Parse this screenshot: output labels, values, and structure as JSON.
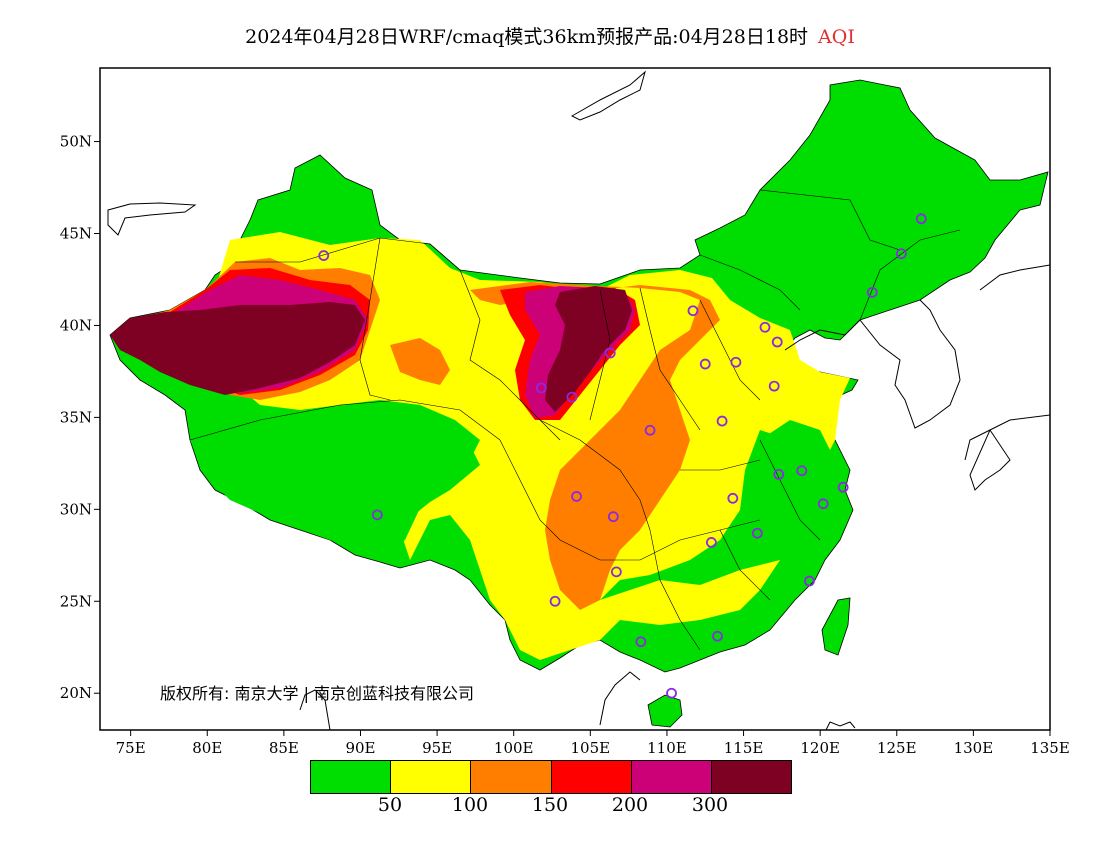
{
  "header": {
    "title": "2024年04月28日WRF/cmaq模式36km预报产品:04月28日18时",
    "variable": "AQI"
  },
  "map": {
    "lat_ticks": [
      "50N",
      "45N",
      "40N",
      "35N",
      "30N",
      "25N",
      "20N"
    ],
    "lon_ticks": [
      "75E",
      "80E",
      "85E",
      "90E",
      "95E",
      "100E",
      "105E",
      "110E",
      "115E",
      "120E",
      "125E",
      "130E",
      "135E"
    ],
    "lat_range": [
      18,
      54
    ],
    "lon_range": [
      73,
      135
    ],
    "copyright": "版权所有: 南京大学 | 南京创蓝科技有限公司",
    "station_marker_color": "#8a2be2",
    "stations": [
      {
        "lon": 87.6,
        "lat": 43.8
      },
      {
        "lon": 91.1,
        "lat": 29.7
      },
      {
        "lon": 101.8,
        "lat": 36.6
      },
      {
        "lon": 103.8,
        "lat": 36.1
      },
      {
        "lon": 106.3,
        "lat": 38.5
      },
      {
        "lon": 111.7,
        "lat": 40.8
      },
      {
        "lon": 112.5,
        "lat": 37.9
      },
      {
        "lon": 114.5,
        "lat": 38.0
      },
      {
        "lon": 116.4,
        "lat": 39.9
      },
      {
        "lon": 117.2,
        "lat": 39.1
      },
      {
        "lon": 117.0,
        "lat": 36.7
      },
      {
        "lon": 113.6,
        "lat": 34.8
      },
      {
        "lon": 108.9,
        "lat": 34.3
      },
      {
        "lon": 104.1,
        "lat": 30.7
      },
      {
        "lon": 106.5,
        "lat": 29.6
      },
      {
        "lon": 106.7,
        "lat": 26.6
      },
      {
        "lon": 102.7,
        "lat": 25.0
      },
      {
        "lon": 108.3,
        "lat": 22.8
      },
      {
        "lon": 113.3,
        "lat": 23.1
      },
      {
        "lon": 110.3,
        "lat": 20.0
      },
      {
        "lon": 119.3,
        "lat": 26.1
      },
      {
        "lon": 120.2,
        "lat": 30.3
      },
      {
        "lon": 121.5,
        "lat": 31.2
      },
      {
        "lon": 118.8,
        "lat": 32.1
      },
      {
        "lon": 117.3,
        "lat": 31.9
      },
      {
        "lon": 115.9,
        "lat": 28.7
      },
      {
        "lon": 112.9,
        "lat": 28.2
      },
      {
        "lon": 114.3,
        "lat": 30.6
      },
      {
        "lon": 123.4,
        "lat": 41.8
      },
      {
        "lon": 125.3,
        "lat": 43.9
      },
      {
        "lon": 126.6,
        "lat": 45.8
      }
    ]
  },
  "legend": {
    "colors": [
      "#00dd00",
      "#ffff00",
      "#ff7e00",
      "#ff0000",
      "#cc0077",
      "#7e0023"
    ],
    "labels": [
      "50",
      "100",
      "150",
      "200",
      "300"
    ]
  }
}
